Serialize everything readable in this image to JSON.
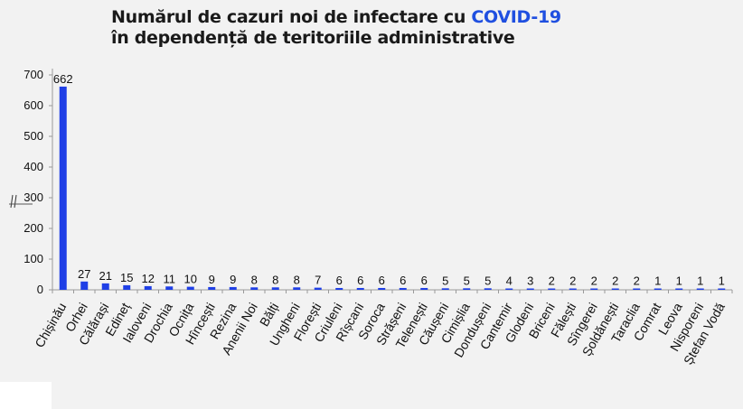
{
  "title": {
    "line1_prefix": "Numărul de cazuri noi de infectare cu ",
    "line1_highlight": "COVID-19",
    "line2": "în dependență de teritoriile administrative"
  },
  "colors": {
    "bar": "#1f3fe6",
    "highlight": "#1f4fe0",
    "axis": "#9a9a9a"
  },
  "chart_data": {
    "type": "bar",
    "title": "Numărul de cazuri noi de infectare cu COVID-19 în dependență de teritoriile administrative",
    "categories": [
      "Chișinău",
      "Orhei",
      "Călărași",
      "Edineț",
      "Ialoveni",
      "Drochia",
      "Ocnița",
      "Hîncești",
      "Rezina",
      "Anenii Noi",
      "Bălți",
      "Ungheni",
      "Florești",
      "Criuleni",
      "Rîșcani",
      "Soroca",
      "Strășeni",
      "Telenești",
      "Căușeni",
      "Cimișlia",
      "Dondușeni",
      "Cantemir",
      "Glodeni",
      "Briceni",
      "Fălești",
      "Sîngerei",
      "Șoldănești",
      "Taraclia",
      "Comrat",
      "Leova",
      "Nisporeni",
      "Ștefan Vodă"
    ],
    "values": [
      662,
      27,
      21,
      15,
      12,
      11,
      10,
      9,
      9,
      8,
      8,
      8,
      7,
      6,
      6,
      6,
      6,
      6,
      5,
      5,
      5,
      4,
      3,
      2,
      2,
      2,
      2,
      2,
      1,
      1,
      1,
      1
    ],
    "data_labels": [
      "662",
      "27",
      "21",
      "15",
      "12",
      "11",
      "10",
      "9",
      "9",
      "8",
      "8",
      "8",
      "7",
      "6",
      "6",
      "6",
      "6",
      "6",
      "5",
      "5",
      "5",
      "4",
      "3",
      "2",
      "2",
      "2",
      "2",
      "2",
      "1",
      "1",
      "1",
      "1"
    ],
    "yticks": [
      "0",
      "100",
      "200",
      "300",
      "400",
      "500",
      "600",
      "700"
    ],
    "ylim": [
      0,
      700
    ],
    "xlabel": "",
    "ylabel": "",
    "grid": false,
    "legend": "none"
  }
}
